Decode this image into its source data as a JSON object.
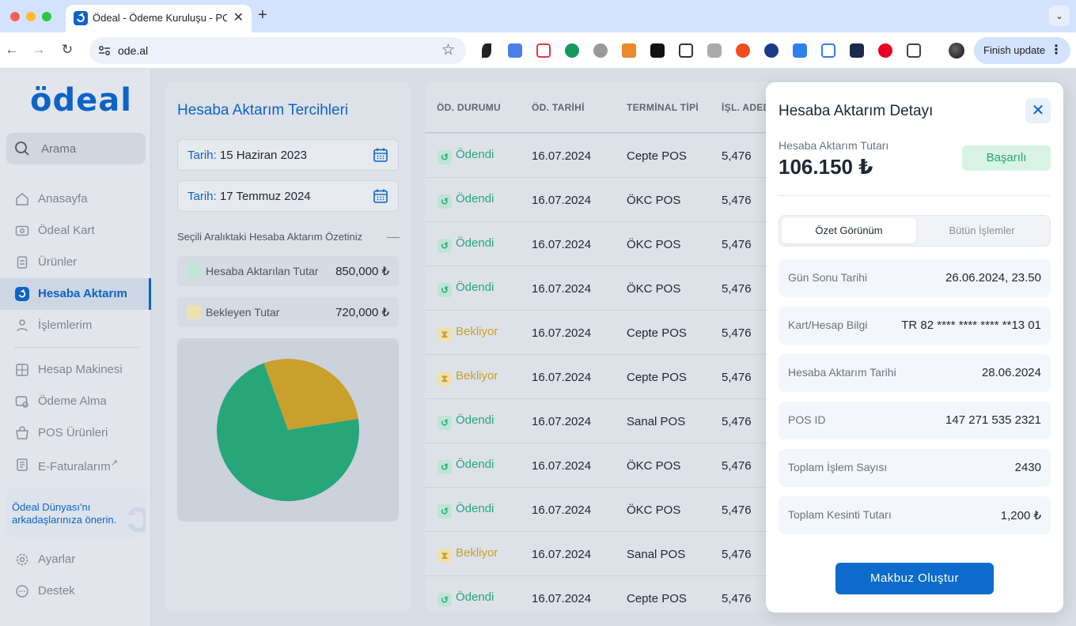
{
  "browser": {
    "tab_title": "Ödeal - Ödeme Kuruluşu - PC",
    "tab_close": "✕",
    "new_tab": "+",
    "url": "ode.al",
    "finish_update": "Finish update",
    "colors": {
      "tab_bar": "#d3e3fd",
      "toolbar": "#ffffff"
    }
  },
  "sidebar": {
    "logo": "ödeal",
    "search_placeholder": "Arama",
    "items": [
      {
        "label": "Anasayfa",
        "icon": "home-icon"
      },
      {
        "label": "Ödeal Kart",
        "icon": "card-icon"
      },
      {
        "label": "Ürünler",
        "icon": "products-icon"
      },
      {
        "label": "Hesaba Aktarım",
        "icon": "transfer-icon",
        "active": true
      },
      {
        "label": "İşlemlerim",
        "icon": "transactions-icon"
      },
      {
        "label": "Hesap Makinesi",
        "icon": "calculator-icon"
      },
      {
        "label": "Ödeme Alma",
        "icon": "payment-icon"
      },
      {
        "label": "POS Ürünleri",
        "icon": "pos-icon"
      },
      {
        "label": "E-Faturalarım",
        "icon": "invoice-icon",
        "external": true
      },
      {
        "label": "Ayarlar",
        "icon": "settings-icon"
      },
      {
        "label": "Destek",
        "icon": "support-icon"
      }
    ],
    "promo": "Ödeal Dünyası'nı arkadaşlarınıza önerin."
  },
  "preferences": {
    "title": "Hesaba Aktarım Tercihleri",
    "date_label": "Tarih:",
    "start_date": "15 Haziran 2023",
    "end_date": "17 Temmuz 2024",
    "summary_title": "Seçili Aralıktaki Hesaba Aktarım Özetiniz",
    "transferred_label": "Hesaba Aktarılan Tutar",
    "transferred_value": "850,000 ₺",
    "pending_label": "Bekleyen Tutar",
    "pending_value": "720,000 ₺"
  },
  "chart_data": {
    "type": "pie",
    "title": "",
    "slices": [
      {
        "value": 0.72,
        "color": "#27a67a"
      },
      {
        "value": 0.28,
        "color": "#c9a02c"
      }
    ]
  },
  "table": {
    "headers": [
      "ÖD. DURUMU",
      "ÖD. TARİHİ",
      "TERMİNAL TİPİ",
      "İŞL. ADEDİ"
    ],
    "rows": [
      {
        "status": "Ödendi",
        "type": "ok",
        "date": "16.07.2024",
        "terminal": "Cepte POS",
        "count": "5,476"
      },
      {
        "status": "Ödendi",
        "type": "ok",
        "date": "16.07.2024",
        "terminal": "ÖKC POS",
        "count": "5,476"
      },
      {
        "status": "Ödendi",
        "type": "ok",
        "date": "16.07.2024",
        "terminal": "ÖKC POS",
        "count": "5,476"
      },
      {
        "status": "Ödendi",
        "type": "ok",
        "date": "16.07.2024",
        "terminal": "ÖKC POS",
        "count": "5,476"
      },
      {
        "status": "Bekliyor",
        "type": "wait",
        "date": "16.07.2024",
        "terminal": "Cepte POS",
        "count": "5,476"
      },
      {
        "status": "Bekliyor",
        "type": "wait",
        "date": "16.07.2024",
        "terminal": "Cepte POS",
        "count": "5,476"
      },
      {
        "status": "Ödendi",
        "type": "ok",
        "date": "16.07.2024",
        "terminal": "Sanal POS",
        "count": "5,476"
      },
      {
        "status": "Ödendi",
        "type": "ok",
        "date": "16.07.2024",
        "terminal": "ÖKC POS",
        "count": "5,476"
      },
      {
        "status": "Ödendi",
        "type": "ok",
        "date": "16.07.2024",
        "terminal": "ÖKC POS",
        "count": "5,476"
      },
      {
        "status": "Bekliyor",
        "type": "wait",
        "date": "16.07.2024",
        "terminal": "Sanal POS",
        "count": "5,476"
      },
      {
        "status": "Ödendi",
        "type": "ok",
        "date": "16.07.2024",
        "terminal": "Cepte POS",
        "count": "5,476"
      }
    ]
  },
  "detail": {
    "title": "Hesaba Aktarım Detayı",
    "close": "✕",
    "amount_label": "Hesaba Aktarım Tutarı",
    "amount": "106.150 ₺",
    "status_badge": "Başarılı",
    "tab_summary": "Özet Görünüm",
    "tab_all": "Bütün İşlemler",
    "rows": [
      {
        "label": "Gün Sonu Tarihi",
        "value": "26.06.2024, 23.50"
      },
      {
        "label": "Kart/Hesap Bilgi",
        "value": "TR 82 **** **** **** **13 01"
      },
      {
        "label": "Hesaba Aktarım Tarihi",
        "value": "28.06.2024"
      },
      {
        "label": "POS ID",
        "value": "147 271 535 2321"
      },
      {
        "label": "Toplam İşlem Sayısı",
        "value": "2430"
      },
      {
        "label": "Toplam Kesinti Tutarı",
        "value": "1,200 ₺"
      }
    ],
    "button": "Makbuz Oluştur",
    "colors": {
      "accent": "#0c6bcb",
      "success": "#27a67a",
      "pending": "#c9a02c"
    }
  }
}
